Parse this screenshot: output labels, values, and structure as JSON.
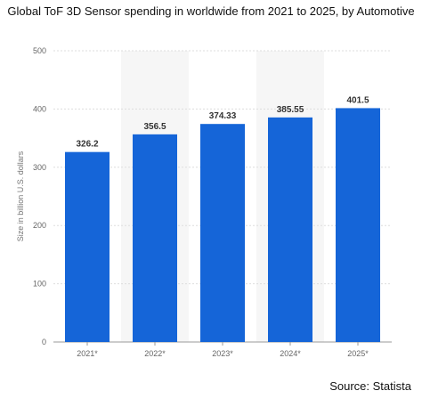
{
  "chart_data": {
    "type": "bar",
    "title": "Global ToF 3D Sensor spending in worldwide from 2021 to 2025, by Automotive",
    "ylabel": "Size in billion U.S. dollars",
    "xlabel": "",
    "categories": [
      "2021*",
      "2022*",
      "2023*",
      "2024*",
      "2025*"
    ],
    "values": [
      326.2,
      356.5,
      374.33,
      385.55,
      401.5
    ],
    "value_labels": [
      "326.2",
      "356.5",
      "374.33",
      "385.55",
      "401.5"
    ],
    "ylim": [
      0,
      500
    ],
    "yticks": [
      "0",
      "100",
      "200",
      "300",
      "400",
      "500"
    ],
    "grid": true,
    "bar_color": "#1565d8",
    "grid_color": "#dddddd",
    "source": "Source: Statista"
  }
}
